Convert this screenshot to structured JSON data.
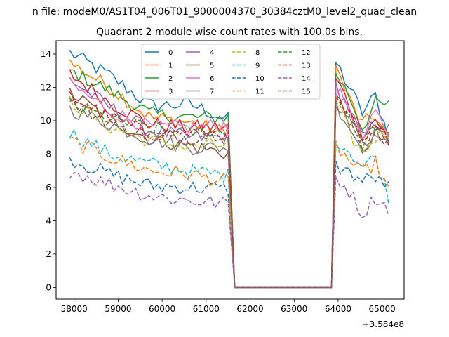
{
  "chart_data": {
    "type": "line",
    "suptitle": "n file: modeM0/AS1T04_006T01_9000004370_30384cztM0_level2_quad_clean",
    "title": "Quadrant 2 module wise count rates with 100.0s bins.",
    "xlabel": "",
    "ylabel": "",
    "x_offset_label": "+3.584e8",
    "xlim": [
      57590,
      65500
    ],
    "ylim": [
      -0.7,
      14.8
    ],
    "xticks": [
      58000,
      59000,
      60000,
      61000,
      62000,
      63000,
      64000,
      65000
    ],
    "xtick_labels": [
      "58000",
      "59000",
      "60000",
      "61000",
      "62000",
      "63000",
      "64000",
      "65000"
    ],
    "yticks": [
      0,
      2,
      4,
      6,
      8,
      10,
      12,
      14
    ],
    "ytick_labels": [
      "0",
      "2",
      "4",
      "6",
      "8",
      "10",
      "12",
      "14"
    ],
    "grid": false,
    "legend_location": "upper-center",
    "gap": {
      "x_start": 61650,
      "x_end": 63850,
      "value": 0
    },
    "series": [
      {
        "name": "0",
        "color": "#1f77b4",
        "style": "solid",
        "seg1": [
          14.1,
          12.7,
          10.9,
          11.0,
          10.0
        ],
        "seg2": [
          13.5,
          12.0,
          10.5,
          11.5,
          9.0
        ]
      },
      {
        "name": "1",
        "color": "#ff7f0e",
        "style": "solid",
        "seg1": [
          13.5,
          12.0,
          10.2,
          9.9,
          9.2
        ],
        "seg2": [
          13.2,
          11.3,
          9.8,
          10.3,
          8.7
        ]
      },
      {
        "name": "2",
        "color": "#2ca02c",
        "style": "solid",
        "seg1": [
          13.0,
          11.8,
          10.4,
          10.2,
          10.2
        ],
        "seg2": [
          12.9,
          11.5,
          9.6,
          11.0,
          10.9
        ]
      },
      {
        "name": "3",
        "color": "#d62728",
        "style": "solid",
        "seg1": [
          12.8,
          11.1,
          9.8,
          9.6,
          9.6
        ],
        "seg2": [
          12.5,
          11.0,
          9.3,
          10.1,
          9.0
        ]
      },
      {
        "name": "4",
        "color": "#9467bd",
        "style": "solid",
        "seg1": [
          12.5,
          10.8,
          9.4,
          9.0,
          9.0
        ],
        "seg2": [
          12.1,
          10.7,
          8.9,
          9.9,
          9.4
        ]
      },
      {
        "name": "5",
        "color": "#8c564b",
        "style": "solid",
        "seg1": [
          11.7,
          10.1,
          8.9,
          8.5,
          8.0
        ],
        "seg2": [
          11.5,
          10.1,
          8.5,
          9.3,
          8.8
        ]
      },
      {
        "name": "6",
        "color": "#e377c2",
        "style": "solid",
        "seg1": [
          12.2,
          10.6,
          9.6,
          9.6,
          9.8
        ],
        "seg2": [
          11.8,
          10.9,
          8.8,
          10.4,
          9.3
        ]
      },
      {
        "name": "7",
        "color": "#7f7f7f",
        "style": "solid",
        "seg1": [
          10.7,
          9.8,
          8.9,
          8.4,
          8.4
        ],
        "seg2": [
          11.0,
          9.7,
          8.3,
          9.4,
          8.7
        ]
      },
      {
        "name": "8",
        "color": "#bcbd22",
        "style": "dashed",
        "seg1": [
          11.2,
          9.6,
          8.8,
          8.4,
          8.6
        ],
        "seg2": [
          11.1,
          9.3,
          8.0,
          9.0,
          9.4
        ]
      },
      {
        "name": "9",
        "color": "#17becf",
        "style": "dashed",
        "seg1": [
          9.3,
          8.0,
          7.4,
          7.0,
          6.7
        ],
        "seg2": [
          8.9,
          8.2,
          7.3,
          7.8,
          5.4
        ]
      },
      {
        "name": "10",
        "color": "#1f77b4",
        "style": "dashed",
        "seg1": [
          7.7,
          6.8,
          6.1,
          6.0,
          5.9
        ],
        "seg2": [
          7.3,
          6.9,
          6.4,
          6.6,
          6.0
        ]
      },
      {
        "name": "11",
        "color": "#ff7f0e",
        "style": "dashed",
        "seg1": [
          8.8,
          7.8,
          7.0,
          6.8,
          6.3
        ],
        "seg2": [
          8.5,
          7.6,
          6.8,
          7.5,
          5.8
        ]
      },
      {
        "name": "12",
        "color": "#2ca02c",
        "style": "dashed",
        "seg1": [
          11.0,
          10.1,
          9.5,
          9.3,
          9.3
        ],
        "seg2": [
          11.4,
          10.4,
          8.6,
          9.8,
          9.0
        ]
      },
      {
        "name": "13",
        "color": "#d62728",
        "style": "dashed",
        "seg1": [
          11.5,
          10.2,
          9.2,
          9.3,
          9.3
        ],
        "seg2": [
          11.2,
          10.3,
          8.6,
          9.5,
          8.9
        ]
      },
      {
        "name": "14",
        "color": "#9467bd",
        "style": "dashed",
        "seg1": [
          7.0,
          6.2,
          5.5,
          5.2,
          5.0
        ],
        "seg2": [
          6.6,
          5.8,
          4.4,
          5.4,
          4.7
        ]
      },
      {
        "name": "15",
        "color": "#8c564b",
        "style": "dashed",
        "seg1": [
          11.1,
          9.9,
          9.1,
          9.0,
          9.4
        ],
        "seg2": [
          10.8,
          10.1,
          8.3,
          9.4,
          8.7
        ]
      }
    ],
    "segment_ranges": {
      "seg1": [
        57900,
        61550
      ],
      "seg2": [
        63950,
        65150
      ]
    },
    "bin_seconds": 100
  }
}
